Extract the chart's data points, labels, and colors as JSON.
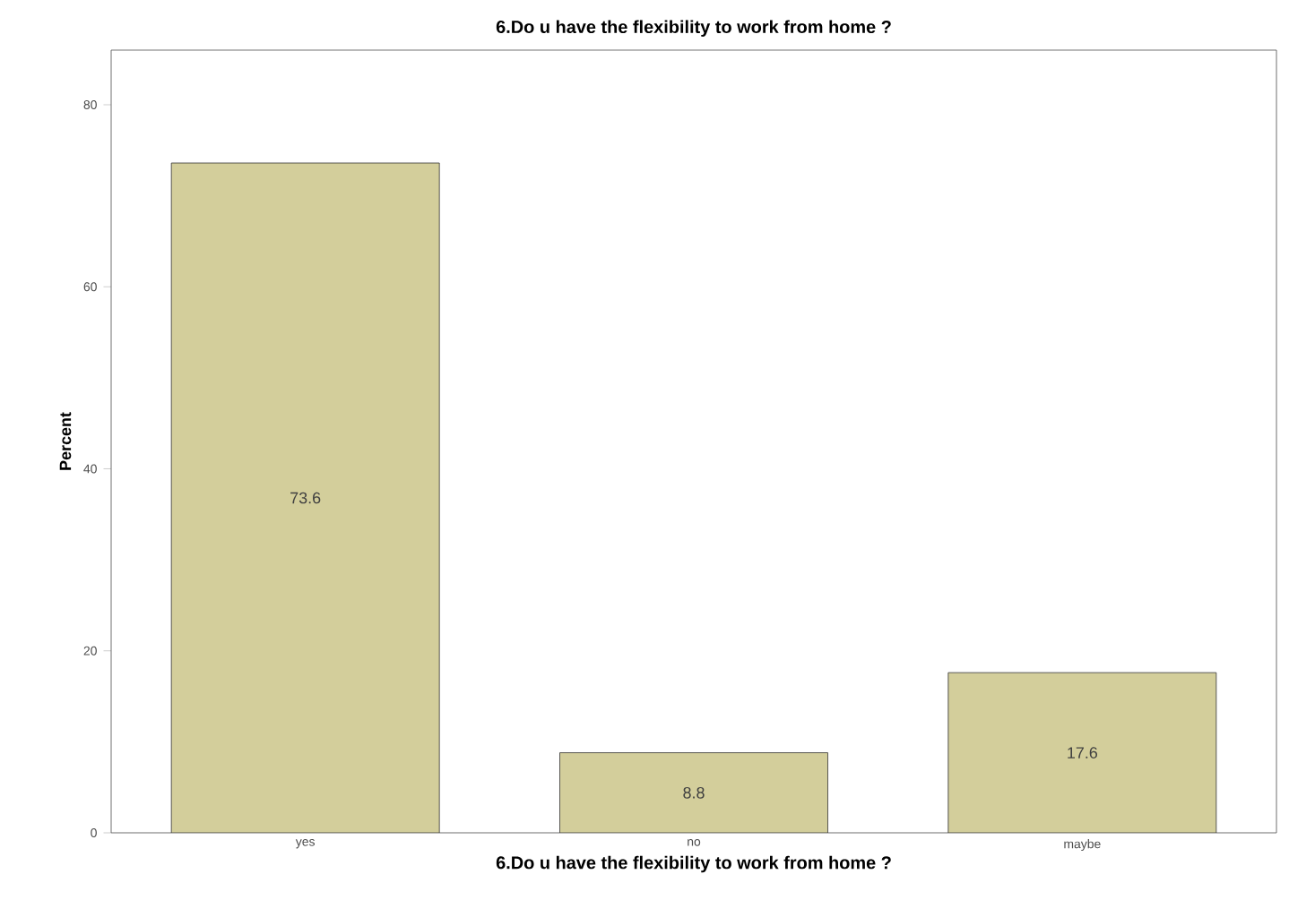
{
  "chart_data": {
    "type": "bar",
    "title": "6.Do u have the flexibility to work from home ?",
    "xlabel": "6.Do u have the flexibility to work from home ?",
    "ylabel": "Percent",
    "categories": [
      "yes",
      "no",
      "maybe"
    ],
    "values": [
      73.6,
      8.8,
      17.6
    ],
    "color": "#d3ce9b",
    "ylim": [
      0,
      86
    ],
    "yticks": [
      0,
      20,
      40,
      60,
      80
    ],
    "data_labels": true
  }
}
